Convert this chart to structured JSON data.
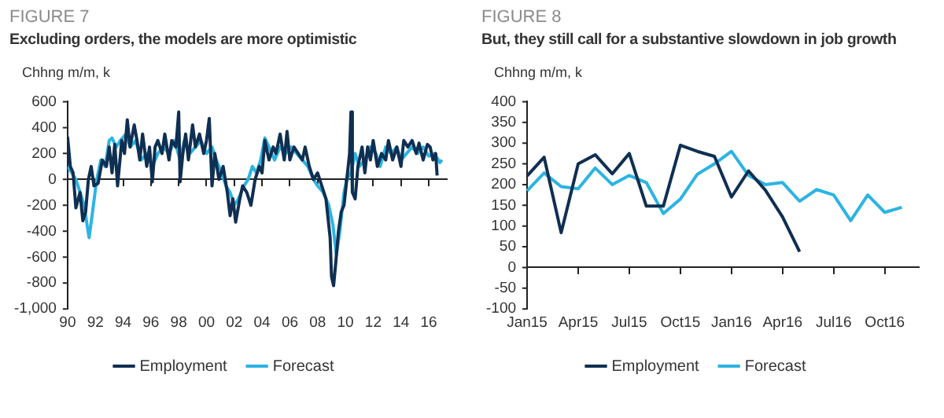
{
  "chart_data": [
    {
      "type": "line",
      "title": "FIGURE 7",
      "subtitle": "Excluding orders, the models are more optimistic",
      "ylabel": "Chhng m/m, k",
      "xlim": [
        1990,
        2017.3
      ],
      "xticks": [
        {
          "value": 1990,
          "label": "90"
        },
        {
          "value": 1992,
          "label": "92"
        },
        {
          "value": 1994,
          "label": "94"
        },
        {
          "value": 1996,
          "label": "96"
        },
        {
          "value": 1998,
          "label": "98"
        },
        {
          "value": 2000,
          "label": "00"
        },
        {
          "value": 2002,
          "label": "02"
        },
        {
          "value": 2004,
          "label": "04"
        },
        {
          "value": 2006,
          "label": "06"
        },
        {
          "value": 2008,
          "label": "08"
        },
        {
          "value": 2010,
          "label": "10"
        },
        {
          "value": 2012,
          "label": "12"
        },
        {
          "value": 2014,
          "label": "14"
        },
        {
          "value": 2016,
          "label": "16"
        }
      ],
      "ref_lines": [
        {
          "axis": "y",
          "value": 0,
          "color": "#222222"
        }
      ],
      "ylim": [
        -1000,
        600
      ],
      "yticks": [
        {
          "value": -1000,
          "label": "-1,000"
        },
        -800,
        -600,
        -400,
        -200,
        0,
        200,
        400,
        600
      ],
      "grid": false,
      "legend": "bottom",
      "series": [
        {
          "name": "Employment",
          "color": "#0f2f52",
          "x": [
            1990,
            1990.2,
            1990.4,
            1990.6,
            1990.9,
            1991.1,
            1991.3,
            1991.5,
            1991.7,
            1991.9,
            1992.2,
            1992.5,
            1992.8,
            1993,
            1993.2,
            1993.4,
            1993.6,
            1993.9,
            1994.1,
            1994.3,
            1994.5,
            1994.8,
            1995,
            1995.2,
            1995.4,
            1995.7,
            1995.9,
            1996.1,
            1996.3,
            1996.5,
            1996.8,
            1997,
            1997.3,
            1997.5,
            1997.8,
            1998,
            1998.1,
            1998.3,
            1998.5,
            1998.7,
            1999,
            1999.2,
            1999.5,
            1999.8,
            2000,
            2000.2,
            2000.4,
            2000.6,
            2000.9,
            2001.2,
            2001.5,
            2001.7,
            2001.9,
            2002.1,
            2002.4,
            2002.6,
            2002.9,
            2003.2,
            2003.5,
            2003.8,
            2004,
            2004.2,
            2004.5,
            2004.8,
            2005,
            2005.3,
            2005.6,
            2005.8,
            2006,
            2006.3,
            2006.6,
            2006.9,
            2007.1,
            2007.4,
            2007.7,
            2008,
            2008.3,
            2008.6,
            2008.9,
            2009,
            2009.15,
            2009.3,
            2009.5,
            2009.7,
            2009.9,
            2010.1,
            2010.3,
            2010.4,
            2010.5,
            2010.7,
            2010.9,
            2011.2,
            2011.4,
            2011.6,
            2011.8,
            2012,
            2012.3,
            2012.6,
            2012.9,
            2013.1,
            2013.4,
            2013.7,
            2014,
            2014.2,
            2014.5,
            2014.8,
            2015.1,
            2015.3,
            2015.6,
            2015.9,
            2016.1,
            2016.3,
            2016.5,
            2016.6
          ],
          "values": [
            330,
            100,
            50,
            -220,
            -100,
            -320,
            -250,
            0,
            100,
            -50,
            -30,
            150,
            100,
            250,
            50,
            270,
            -50,
            300,
            200,
            460,
            250,
            420,
            300,
            150,
            350,
            100,
            250,
            -20,
            250,
            300,
            200,
            350,
            150,
            300,
            250,
            520,
            -20,
            200,
            350,
            150,
            420,
            250,
            350,
            200,
            300,
            470,
            -50,
            200,
            0,
            100,
            -100,
            -280,
            -150,
            -330,
            -150,
            -50,
            -100,
            -200,
            0,
            100,
            50,
            300,
            150,
            250,
            200,
            350,
            150,
            370,
            150,
            250,
            200,
            150,
            250,
            100,
            0,
            50,
            -50,
            -150,
            -450,
            -750,
            -820,
            -650,
            -400,
            -250,
            -200,
            0,
            200,
            520,
            -100,
            -150,
            100,
            250,
            50,
            250,
            150,
            300,
            100,
            200,
            150,
            300,
            150,
            250,
            100,
            300,
            250,
            300,
            200,
            280,
            150,
            270,
            250,
            150,
            200,
            30
          ]
        },
        {
          "name": "Forecast",
          "color": "#2cb4e2",
          "x": [
            1990,
            1990.3,
            1990.6,
            1990.9,
            1991.2,
            1991.4,
            1991.55,
            1991.8,
            1992.1,
            1992.4,
            1992.7,
            1993,
            1993.2,
            1993.5,
            1993.8,
            1994.2,
            1994.5,
            1994.9,
            1995.3,
            1995.7,
            1996.1,
            1996.5,
            1996.9,
            1997.3,
            1997.7,
            1998.1,
            1998.4,
            1998.8,
            1999.2,
            1999.6,
            2000,
            2000.4,
            2000.7,
            2001.1,
            2001.4,
            2001.7,
            2002,
            2002.3,
            2002.7,
            2003,
            2003.3,
            2003.6,
            2003.9,
            2004.2,
            2004.5,
            2004.9,
            2005.3,
            2005.7,
            2006.1,
            2006.5,
            2006.9,
            2007.3,
            2007.7,
            2008,
            2008.4,
            2008.8,
            2009.1,
            2009.35,
            2009.6,
            2009.9,
            2010.1,
            2010.4,
            2010.7,
            2011,
            2011.4,
            2011.8,
            2012.2,
            2012.5,
            2012.9,
            2013.3,
            2013.7,
            2014,
            2014.4,
            2014.8,
            2015.2,
            2015.6,
            2016,
            2016.4,
            2016.8,
            2016.95
          ],
          "values": [
            100,
            50,
            0,
            -100,
            -200,
            -350,
            -450,
            -250,
            0,
            150,
            100,
            300,
            320,
            250,
            300,
            350,
            250,
            300,
            150,
            200,
            100,
            200,
            250,
            200,
            300,
            150,
            300,
            200,
            250,
            300,
            200,
            250,
            150,
            50,
            -50,
            -100,
            -200,
            -150,
            -50,
            0,
            100,
            50,
            150,
            320,
            250,
            150,
            250,
            200,
            250,
            200,
            150,
            100,
            0,
            -50,
            -100,
            -200,
            -350,
            -580,
            -400,
            -100,
            0,
            50,
            200,
            100,
            150,
            250,
            200,
            100,
            250,
            200,
            250,
            150,
            200,
            250,
            200,
            250,
            180,
            200,
            130,
            150
          ]
        }
      ]
    },
    {
      "type": "line",
      "title": "FIGURE 8",
      "subtitle": "But, they still call for a substantive slowdown in job growth",
      "ylabel": "Chhng m/m, k",
      "categories": [
        "Jan15",
        null,
        null,
        "Apr15",
        null,
        null,
        "Jul15",
        null,
        null,
        "Oct15",
        null,
        null,
        "Jan16",
        null,
        null,
        "Apr16",
        null,
        null,
        "Jul16",
        null,
        null,
        "Oct16",
        null,
        null
      ],
      "ref_lines": [
        {
          "axis": "y",
          "value": 0,
          "color": "#222222"
        }
      ],
      "ylim": [
        -100,
        400
      ],
      "yticks": [
        -100,
        -50,
        0,
        50,
        100,
        150,
        200,
        250,
        300,
        350,
        400
      ],
      "grid": false,
      "legend": "bottom",
      "series": [
        {
          "name": "Employment",
          "color": "#0f2f52",
          "values": [
            221,
            266,
            84,
            250,
            272,
            226,
            275,
            148,
            148,
            295,
            280,
            268,
            170,
            233,
            186,
            122,
            38,
            null,
            null,
            null,
            null,
            null,
            null,
            null
          ]
        },
        {
          "name": "Forecast",
          "color": "#2cb4e2",
          "values": [
            185,
            228,
            195,
            190,
            240,
            200,
            222,
            205,
            130,
            165,
            225,
            250,
            280,
            222,
            200,
            205,
            160,
            188,
            175,
            113,
            175,
            133,
            145,
            null
          ]
        }
      ]
    }
  ]
}
